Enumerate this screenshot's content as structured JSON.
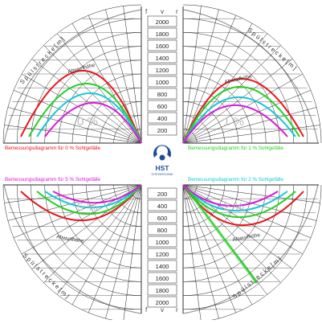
{
  "axis_letters": {
    "f": "f",
    "v": "v",
    "r": "r"
  },
  "center_scale": {
    "upper": [
      "2000",
      "1800",
      "1600",
      "1400",
      "1200",
      "1000",
      "800",
      "600",
      "400",
      "200"
    ],
    "lower": [
      "200",
      "400",
      "600",
      "800",
      "1000",
      "1200",
      "1400",
      "1600",
      "1800",
      "2000"
    ]
  },
  "quadrants": {
    "top_left": {
      "percent": "0 %",
      "caption": "Bemessungsdiagramm für 0 % Sohlgefälle",
      "color": "#e8141b"
    },
    "top_right": {
      "percent": "1 %",
      "caption": "Bemessungsdiagramm für 1 % Sohlgefälle",
      "color": "#22d122"
    },
    "bottom_left": {
      "percent": "5 %",
      "caption": "Bemessungsdiagramm für 5 % Sohlgefälle",
      "color": "#d81ad8"
    },
    "bottom_right": {
      "percent": "2 %",
      "caption": "Bemessungsdiagramm für 2 % Sohlgefälle",
      "color": "#14c8d8"
    }
  },
  "labels": {
    "spuelstrecke": "S p ü l s t r e c k e   [ m ]",
    "abwurfhoehe": "Abwurfhöhe",
    "ring_ticks": [
      "2 m",
      "3 m",
      "4 m",
      "5 m"
    ],
    "radial_ticks": [
      "10",
      "20",
      "30",
      "40"
    ]
  },
  "logo": {
    "mark": "HST",
    "sub": "SYSTEMTECHNIK"
  },
  "curve_colors": [
    "#e8141b",
    "#22d122",
    "#14c8d8",
    "#d81ad8"
  ]
}
